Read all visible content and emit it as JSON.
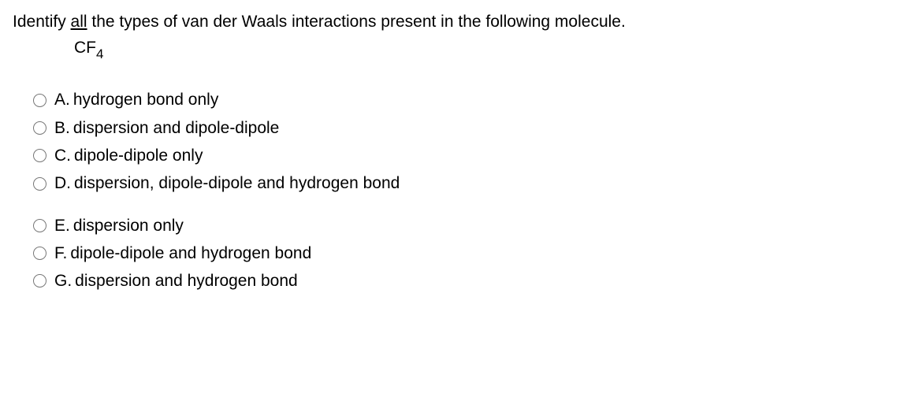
{
  "question": {
    "prefix": "Identify ",
    "underlined": "all",
    "suffix": " the types of van der Waals interactions present in the following molecule."
  },
  "molecule": {
    "base": "CF",
    "subscript": "4"
  },
  "options": [
    {
      "letter": "A.",
      "text": "hydrogen bond only"
    },
    {
      "letter": "B.",
      "text": "dispersion and dipole-dipole"
    },
    {
      "letter": "C.",
      "text": "dipole-dipole only"
    },
    {
      "letter": "D.",
      "text": "dispersion, dipole-dipole and hydrogen bond"
    },
    {
      "letter": "E.",
      "text": "dispersion only"
    },
    {
      "letter": "F.",
      "text": "dipole-dipole and hydrogen bond"
    },
    {
      "letter": "G.",
      "text": "dispersion and hydrogen bond"
    }
  ],
  "colors": {
    "text": "#000000",
    "background": "#ffffff",
    "radio_border": "#777777"
  }
}
